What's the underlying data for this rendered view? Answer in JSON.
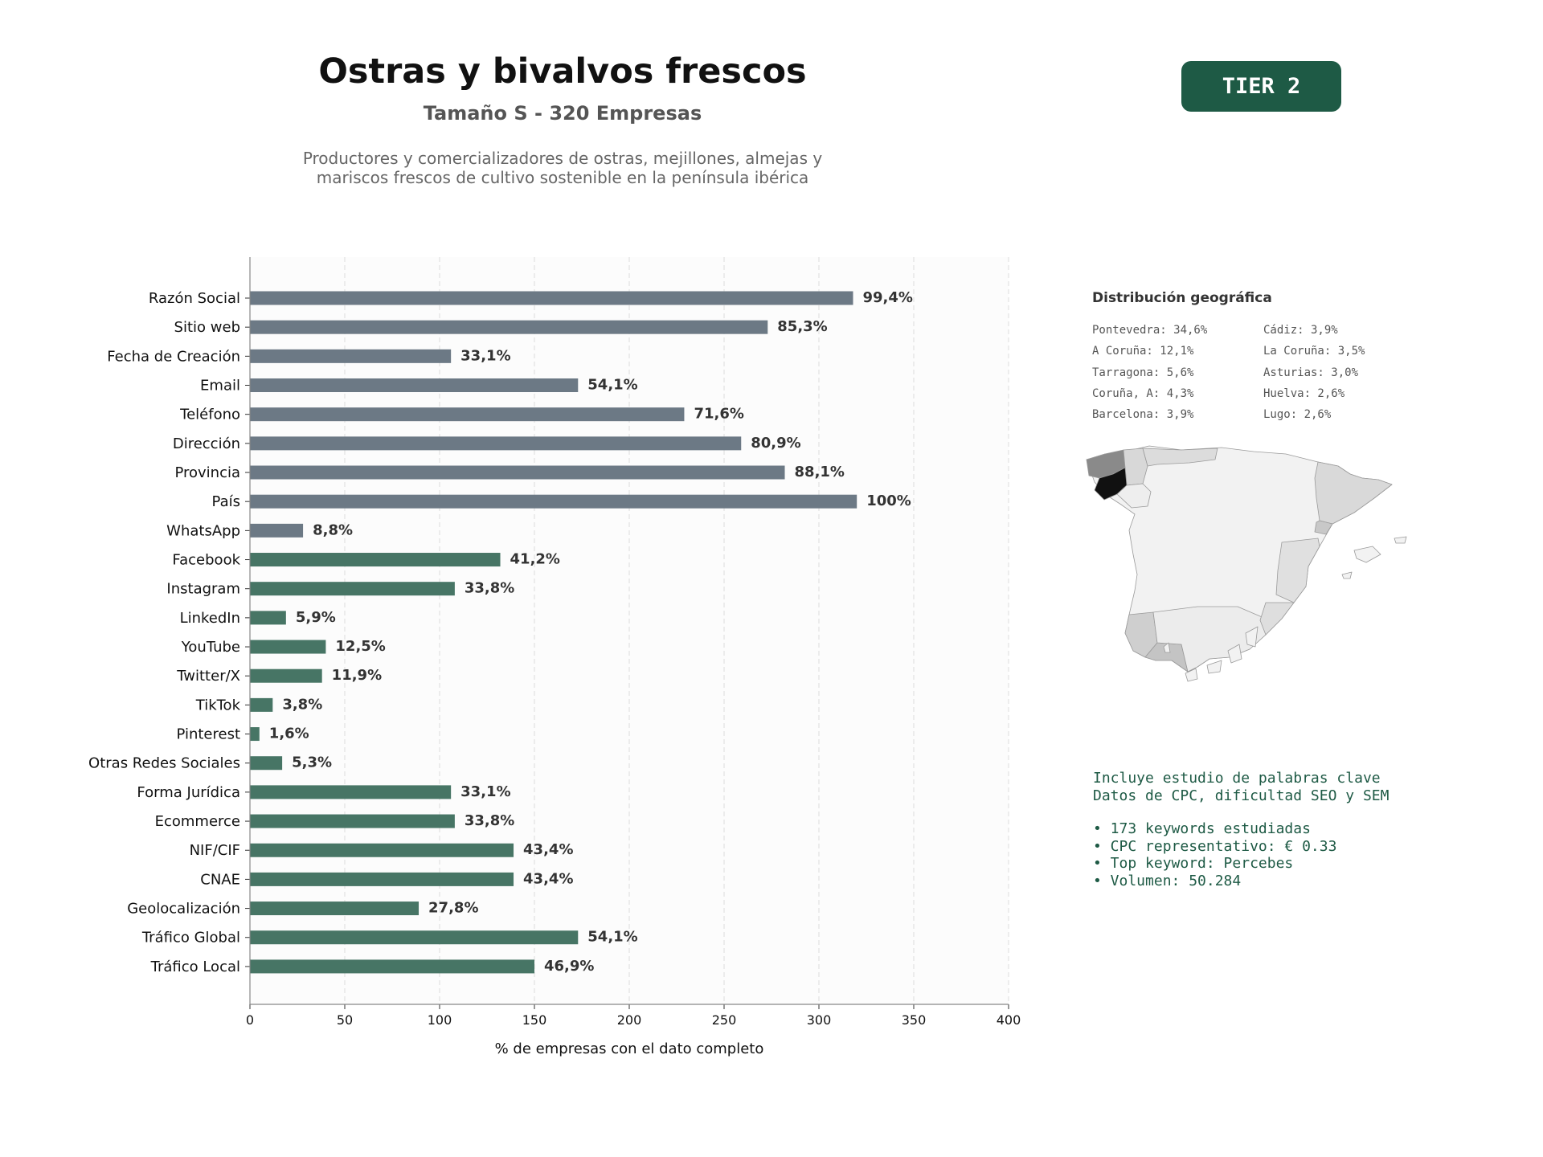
{
  "header": {
    "title": "Ostras y bivalvos frescos",
    "subtitle": "Tamaño S - 320 Empresas",
    "description_lines": [
      "Productores y comercializadores de ostras, mejillones, almejas y",
      "mariscos frescos de cultivo sostenible en la península ibérica"
    ],
    "tier_badge": "TIER 2"
  },
  "colors": {
    "accent": "#1e5a45",
    "basic_bar": "#6c7985",
    "social_bar": "#477565",
    "plot_background": "#fcfcfc",
    "data_label": "#333333"
  },
  "chart_data": {
    "type": "bar",
    "orientation": "horizontal",
    "categories": [
      "Razón Social",
      "Sitio web",
      "Fecha de Creación",
      "Email",
      "Teléfono",
      "Dirección",
      "Provincia",
      "País",
      "WhatsApp",
      "Facebook",
      "Instagram",
      "LinkedIn",
      "YouTube",
      "Twitter/X",
      "TikTok",
      "Pinterest",
      "Otras Redes Sociales",
      "Forma Jurídica",
      "Ecommerce",
      "NIF/CIF",
      "CNAE",
      "Geolocalización",
      "Tráfico Global",
      "Tráfico Local"
    ],
    "values": [
      318,
      273,
      106,
      173,
      229,
      259,
      282,
      320,
      28,
      132,
      108,
      19,
      40,
      38,
      12,
      5,
      17,
      106,
      108,
      139,
      139,
      89,
      173,
      150
    ],
    "labels": [
      "99,4%",
      "85,3%",
      "33,1%",
      "54,1%",
      "71,6%",
      "80,9%",
      "88,1%",
      "100%",
      "8,8%",
      "41,2%",
      "33,8%",
      "5,9%",
      "12,5%",
      "11,9%",
      "3,8%",
      "1,6%",
      "5,3%",
      "33,1%",
      "33,8%",
      "43,4%",
      "43,4%",
      "27,8%",
      "54,1%",
      "46,9%"
    ],
    "bar_color_groups": [
      "basic",
      "basic",
      "basic",
      "basic",
      "basic",
      "basic",
      "basic",
      "basic",
      "basic",
      "social",
      "social",
      "social",
      "social",
      "social",
      "social",
      "social",
      "social",
      "social",
      "social",
      "social",
      "social",
      "social",
      "social",
      "social"
    ],
    "xlim": [
      0,
      400
    ],
    "xticks": [
      0,
      50,
      100,
      150,
      200,
      250,
      300,
      350,
      400
    ],
    "xlabel": "% de empresas con el dato completo",
    "grid": "vertical dashed"
  },
  "geo": {
    "title": "Distribución geográfica",
    "column1": [
      "Pontevedra: 34,6%",
      "A Coruña: 12,1%",
      "Tarragona: 5,6%",
      "Coruña, A: 4,3%",
      "Barcelona: 3,9%"
    ],
    "column2": [
      "Cádiz: 3,9%",
      "La Coruña: 3,5%",
      "Asturias: 3,0%",
      "Huelva: 2,6%",
      "Lugo: 2,6%"
    ]
  },
  "keywords": {
    "line1": "Incluye estudio de palabras clave",
    "line2": "Datos de CPC, dificultad SEO y SEM",
    "bullets": [
      "• 173 keywords estudiadas",
      "• CPC representativo: € 0.33",
      "• Top keyword: Percebes",
      "• Volumen: 50.284"
    ]
  }
}
